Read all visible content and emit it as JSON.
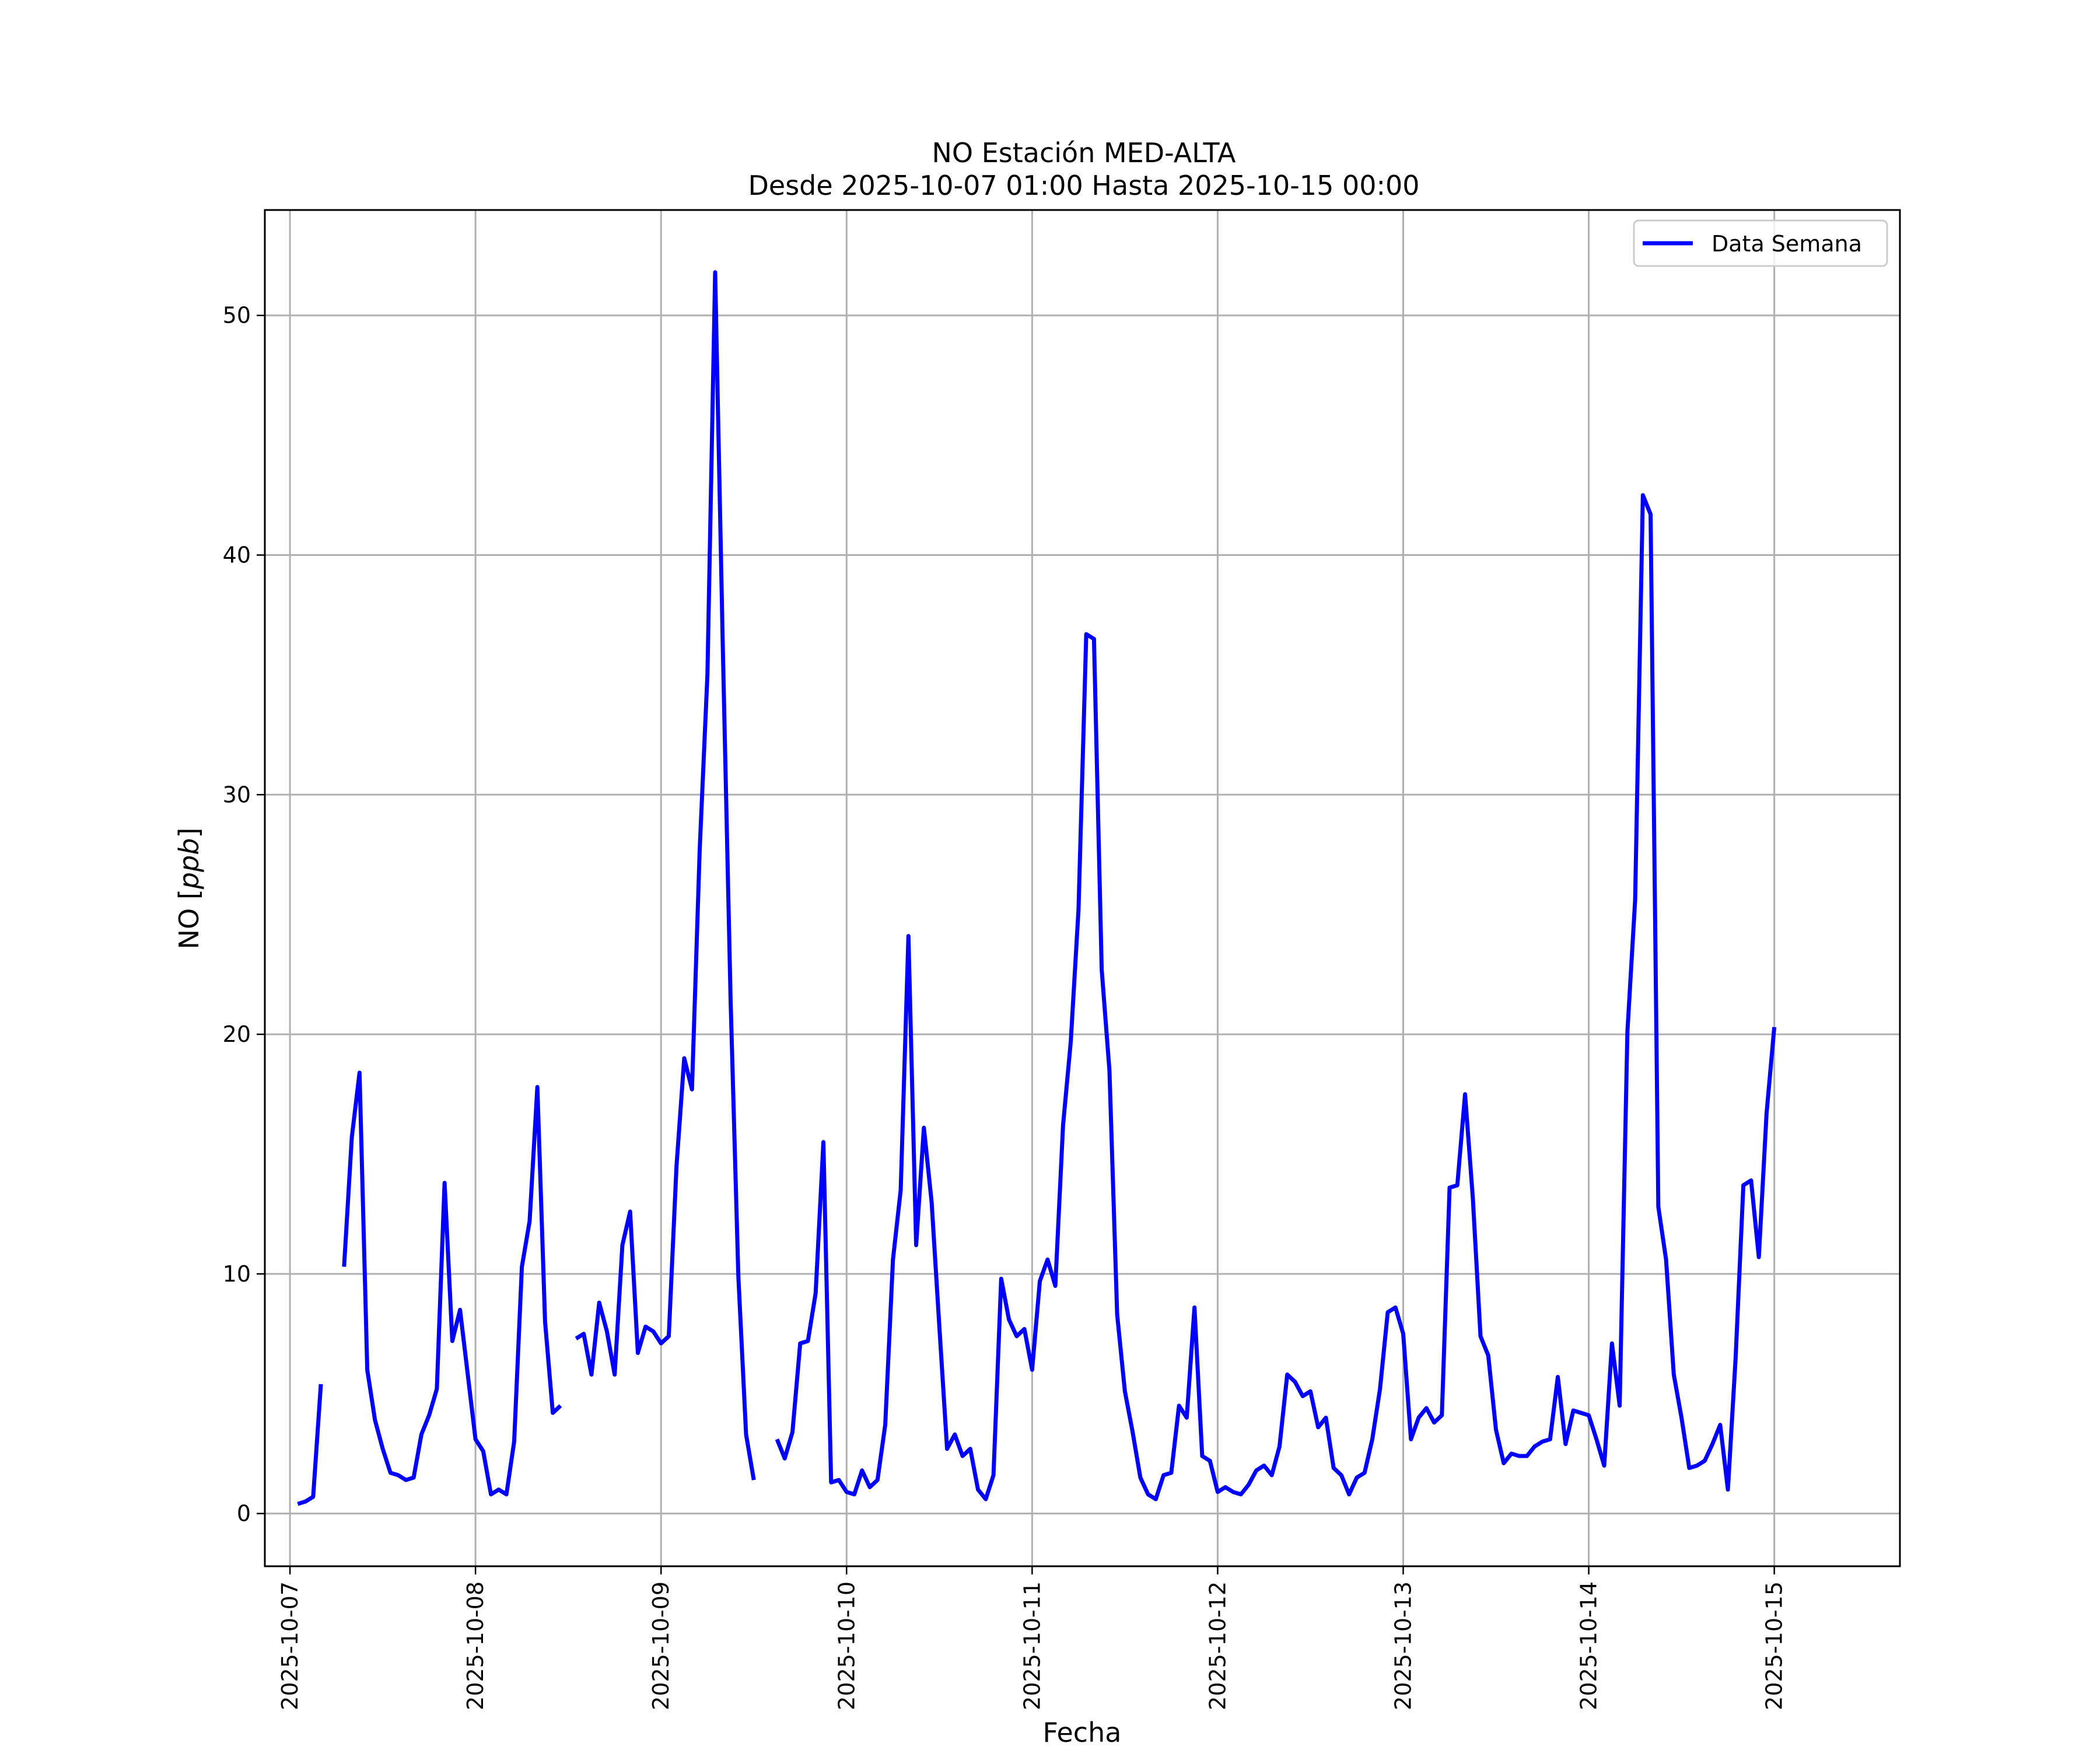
{
  "chart_data": {
    "type": "line",
    "title": "NO Estación MED-ALTA",
    "subtitle": "Desde 2025-10-07 01:00 Hasta 2025-10-15 00:00",
    "xlabel": "Fecha",
    "ylabel_text": "NO [",
    "ylabel_unit": "ppb",
    "ylabel_close": "]",
    "xlim": [
      "2025-10-06 20:45",
      "2025-10-15 16:15"
    ],
    "ylim": [
      -2.2,
      54.4
    ],
    "xticks": [
      "2025-10-07",
      "2025-10-08",
      "2025-10-09",
      "2025-10-10",
      "2025-10-11",
      "2025-10-12",
      "2025-10-13",
      "2025-10-14",
      "2025-10-15"
    ],
    "yticks": [
      0,
      10,
      20,
      30,
      40,
      50
    ],
    "grid": true,
    "legend_position": "top-right",
    "series": [
      {
        "name": "Data Semana",
        "color": "#0000ff",
        "segments": [
          {
            "start": "2025-10-07 01:00",
            "values": [
              0.4,
              0.5,
              0.7,
              5.4
            ]
          },
          {
            "start": "2025-10-07 07:00",
            "values": [
              10.3,
              15.7,
              18.4,
              6.0,
              3.9,
              2.7,
              1.7,
              1.6,
              1.4,
              1.5,
              3.3,
              4.1,
              5.2,
              13.8,
              7.2,
              8.5,
              5.8,
              3.1,
              2.6,
              0.8,
              1.0,
              0.8,
              3.0,
              10.3,
              12.2,
              17.8,
              8.0,
              4.2,
              4.5
            ]
          },
          {
            "start": "2025-10-08 13:00",
            "values": [
              7.3,
              7.5,
              5.8,
              8.8,
              7.6,
              5.8,
              11.2,
              12.6,
              6.7,
              7.8,
              7.6,
              7.1,
              7.4,
              14.5,
              19.0,
              17.7,
              27.7,
              35.0,
              51.8,
              36.0,
              21.4,
              9.9,
              3.3,
              1.4
            ]
          },
          {
            "start": "2025-10-09 15:00",
            "values": [
              3.1,
              2.3,
              3.4,
              7.1,
              7.2,
              9.2,
              15.5,
              1.3,
              1.4,
              0.9,
              0.8,
              1.8,
              1.1,
              1.4,
              3.7,
              10.6,
              13.5,
              24.1,
              11.2,
              16.1,
              13.0,
              7.8,
              2.7,
              3.3,
              2.4,
              2.7,
              1.0,
              0.6,
              1.6,
              9.8,
              8.1,
              7.4,
              7.7,
              6.0,
              9.7,
              10.6,
              9.5,
              16.2,
              19.7,
              25.2,
              36.7,
              36.5,
              22.7,
              18.5,
              8.3,
              5.1,
              3.4,
              1.5,
              0.8,
              0.6,
              1.6,
              1.7,
              4.5,
              4.0,
              8.6,
              2.4,
              2.2,
              0.9,
              1.1,
              0.9,
              0.8,
              1.2,
              1.8,
              2.0,
              1.6,
              2.8,
              5.8,
              5.5,
              4.9,
              5.1,
              3.6,
              4.0,
              1.9,
              1.6,
              0.8,
              1.5,
              1.7,
              3.1,
              5.2,
              8.4,
              8.6,
              7.5,
              3.1,
              4.0,
              4.4,
              3.8,
              4.1,
              13.6,
              13.7,
              17.5,
              13.2,
              7.4,
              6.6,
              3.5,
              2.1,
              2.5,
              2.4,
              2.4,
              2.8,
              3.0,
              3.1,
              5.7,
              2.9,
              4.3,
              4.2,
              4.1,
              3.1,
              2.0,
              7.1,
              4.5,
              20.1,
              25.6,
              42.5,
              41.7,
              12.8,
              10.6,
              5.8,
              4.0,
              1.9,
              2.0,
              2.2,
              2.9,
              3.7,
              1.0,
              6.5,
              13.7,
              13.9,
              10.7,
              16.7,
              20.3
            ]
          }
        ]
      }
    ]
  }
}
